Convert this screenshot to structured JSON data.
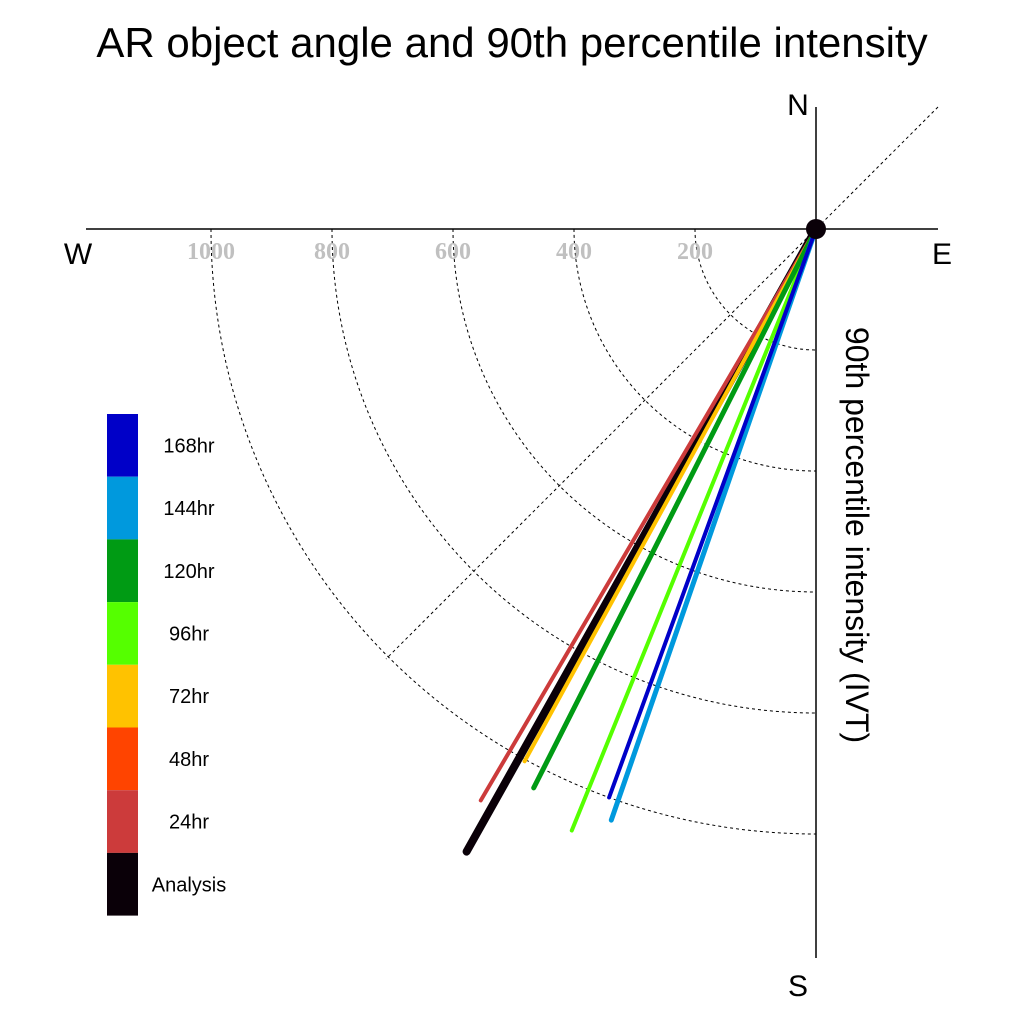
{
  "chart_data": {
    "type": "polar-line",
    "title": "AR object angle and 90th percentile intensity",
    "ylabel": "90th percentile intensity (IVT)",
    "compass": {
      "north": "N",
      "south": "S",
      "east": "E",
      "west": "W"
    },
    "radial_ticks": [
      {
        "value": 200,
        "label": "200"
      },
      {
        "value": 400,
        "label": "400"
      },
      {
        "value": 600,
        "label": "600"
      },
      {
        "value": 800,
        "label": "800"
      },
      {
        "value": 1000,
        "label": "1000"
      }
    ],
    "series": [
      {
        "name": "Analysis",
        "color": "#0a0008",
        "angle_deg": 209.3,
        "magnitude": 1180
      },
      {
        "name": "24hr",
        "color": "#cc3b3b",
        "angle_deg": 210.4,
        "magnitude": 1095
      },
      {
        "name": "48hr",
        "color": "#ff4400",
        "angle_deg": 209.0,
        "magnitude": 15
      },
      {
        "name": "72hr",
        "color": "#ffc200",
        "angle_deg": 208.7,
        "magnitude": 1003
      },
      {
        "name": "96hr",
        "color": "#55ff00",
        "angle_deg": 202.1,
        "magnitude": 1073
      },
      {
        "name": "120hr",
        "color": "#009b14",
        "angle_deg": 206.8,
        "magnitude": 1035
      },
      {
        "name": "144hr",
        "color": "#0099dd",
        "angle_deg": 199.1,
        "magnitude": 1034
      },
      {
        "name": "168hr",
        "color": "#0000c8",
        "angle_deg": 200.0,
        "magnitude": 1000
      }
    ],
    "legend": {
      "placement": "left",
      "entries": [
        {
          "label": "168hr",
          "color": "#0000c8"
        },
        {
          "label": "144hr",
          "color": "#0099dd"
        },
        {
          "label": "120hr",
          "color": "#009b14"
        },
        {
          "label": "96hr",
          "color": "#55ff00"
        },
        {
          "label": "72hr",
          "color": "#ffc200"
        },
        {
          "label": "48hr",
          "color": "#ff4400"
        },
        {
          "label": "24hr",
          "color": "#cc3b3b"
        },
        {
          "label": "Analysis",
          "color": "#0a0008"
        }
      ]
    }
  }
}
